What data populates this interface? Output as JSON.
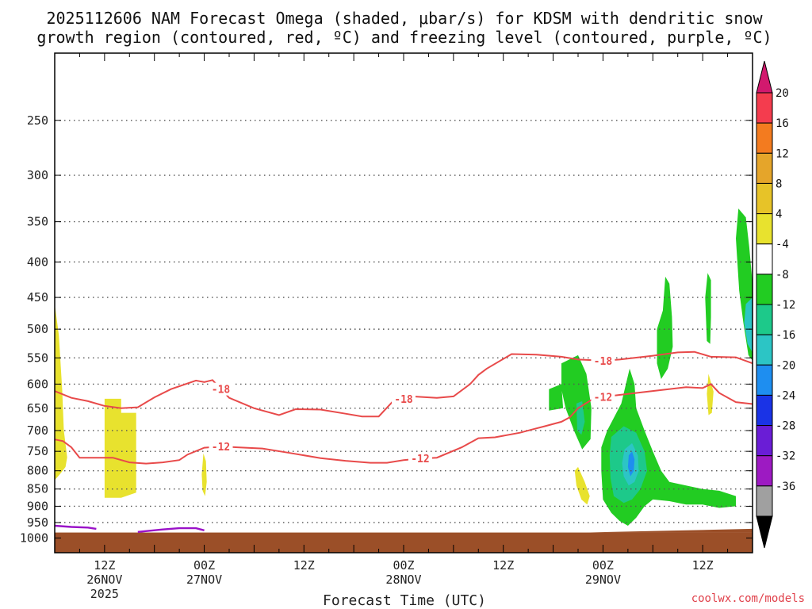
{
  "chart_data": {
    "type": "time-height",
    "title_lines": [
      "2025112606 NAM Forecast Omega (shaded, μbar/s) for KDSM with dendritic snow",
      "growth region (contoured, red, ºC) and freezing level (contoured, purple, ºC)"
    ],
    "xlabel": "Forecast Time (UTC)",
    "credit": "coolwx.com/models",
    "ylabel": "",
    "y_scale": "log-pressure",
    "ylim_hPa": [
      1050,
      200
    ],
    "grid": true,
    "y_ticks": [
      250,
      300,
      350,
      400,
      450,
      500,
      550,
      600,
      650,
      700,
      750,
      800,
      850,
      900,
      950,
      1000
    ],
    "x_range_hours": [
      0,
      84
    ],
    "x_ticks": [
      {
        "hour": 6,
        "lines": [
          "12Z",
          "26NOV",
          "2025"
        ]
      },
      {
        "hour": 18,
        "lines": [
          "00Z",
          "27NOV"
        ]
      },
      {
        "hour": 30,
        "lines": [
          "12Z"
        ]
      },
      {
        "hour": 42,
        "lines": [
          "00Z",
          "28NOV"
        ]
      },
      {
        "hour": 54,
        "lines": [
          "12Z"
        ]
      },
      {
        "hour": 66,
        "lines": [
          "00Z",
          "29NOV"
        ]
      },
      {
        "hour": 78,
        "lines": [
          "12Z"
        ]
      }
    ],
    "colorbar": {
      "labels": [
        "20",
        "16",
        "12",
        "8",
        "4",
        "-4",
        "-8",
        "-12",
        "-16",
        "-20",
        "-24",
        "-28",
        "-32",
        "-36"
      ],
      "colors": [
        "#f43c4e",
        "#f37b1f",
        "#e5a52a",
        "#e7c328",
        "#e8e22e",
        "#ffffff",
        "#22cc22",
        "#1dc98a",
        "#2cc5c5",
        "#1e8ef0",
        "#1a33e6",
        "#6a1dd6",
        "#9d1ac2",
        "#a0a0a0"
      ],
      "top_arrow_color": "#d2196e",
      "bottom_arrow_color": "#000000"
    },
    "contours": [
      {
        "label": "-18",
        "color": "#e84a4a",
        "points": [
          [
            0,
            614
          ],
          [
            2,
            628
          ],
          [
            4,
            635
          ],
          [
            6,
            645
          ],
          [
            8,
            650
          ],
          [
            10,
            648
          ],
          [
            12,
            627
          ],
          [
            14,
            610
          ],
          [
            17,
            593
          ],
          [
            18,
            596
          ],
          [
            19,
            592
          ],
          [
            21,
            628
          ],
          [
            24,
            650
          ],
          [
            27,
            665
          ],
          [
            29,
            652
          ],
          [
            32,
            653
          ],
          [
            35,
            662
          ],
          [
            37,
            668
          ],
          [
            39,
            668
          ],
          [
            41,
            630
          ],
          [
            42,
            630
          ],
          [
            43,
            625
          ],
          [
            46,
            628
          ],
          [
            48,
            625
          ],
          [
            50,
            600
          ],
          [
            51,
            582
          ],
          [
            52,
            570
          ],
          [
            55,
            543
          ],
          [
            58,
            544
          ],
          [
            61,
            548
          ],
          [
            63,
            553
          ],
          [
            66,
            555
          ],
          [
            68,
            553
          ],
          [
            72,
            546
          ],
          [
            75,
            540
          ],
          [
            77,
            539
          ],
          [
            79,
            548
          ],
          [
            82,
            549
          ],
          [
            84,
            560
          ]
        ],
        "label_at_hours": [
          20,
          42,
          66
        ]
      },
      {
        "label": "-12",
        "color": "#e84a4a",
        "points": [
          [
            0,
            721
          ],
          [
            1,
            725
          ],
          [
            2,
            740
          ],
          [
            3,
            766
          ],
          [
            5,
            766
          ],
          [
            7,
            766
          ],
          [
            9,
            778
          ],
          [
            11,
            781
          ],
          [
            13,
            778
          ],
          [
            15,
            772
          ],
          [
            16,
            758
          ],
          [
            18,
            741
          ],
          [
            20,
            738
          ],
          [
            22,
            740
          ],
          [
            25,
            743
          ],
          [
            28,
            753
          ],
          [
            32,
            767
          ],
          [
            35,
            774
          ],
          [
            38,
            779
          ],
          [
            40,
            779
          ],
          [
            42,
            772
          ],
          [
            44,
            768
          ],
          [
            46,
            766
          ],
          [
            49,
            740
          ],
          [
            51,
            718
          ],
          [
            53,
            716
          ],
          [
            56,
            705
          ],
          [
            58,
            695
          ],
          [
            59,
            690
          ],
          [
            61,
            680
          ],
          [
            62,
            670
          ],
          [
            63,
            650
          ],
          [
            65,
            628
          ],
          [
            67,
            624
          ],
          [
            69,
            620
          ],
          [
            73,
            612
          ],
          [
            76,
            606
          ],
          [
            78,
            608
          ],
          [
            79,
            600
          ],
          [
            80,
            618
          ],
          [
            82,
            637
          ],
          [
            84,
            641
          ]
        ],
        "label_at_hours": [
          20,
          44,
          66
        ]
      }
    ],
    "freezing_level": [
      {
        "points": [
          [
            0,
            960
          ],
          [
            2,
            964
          ],
          [
            4,
            966
          ],
          [
            5,
            970
          ]
        ]
      },
      {
        "points": [
          [
            10,
            980
          ],
          [
            13,
            972
          ],
          [
            15,
            968
          ],
          [
            17,
            968
          ],
          [
            18,
            975
          ]
        ]
      }
    ],
    "omega_regions": [
      {
        "color": "#e8e22e",
        "value_range": [
          4,
          8
        ],
        "polygon": [
          [
            0,
            460
          ],
          [
            0.5,
            510
          ],
          [
            0.9,
            610
          ],
          [
            1.1,
            700
          ],
          [
            1.5,
            765
          ],
          [
            1.3,
            790
          ],
          [
            0.6,
            810
          ],
          [
            0,
            825
          ]
        ]
      },
      {
        "color": "#e8e22e",
        "value_range": [
          4,
          8
        ],
        "polygon": [
          [
            6,
            630
          ],
          [
            8,
            630
          ],
          [
            8,
            660
          ],
          [
            9.8,
            660
          ],
          [
            9.8,
            860
          ],
          [
            8,
            875
          ],
          [
            6,
            875
          ]
        ]
      },
      {
        "color": "#e8e22e",
        "value_range": [
          4,
          8
        ],
        "polygon": [
          [
            17.9,
            755
          ],
          [
            18.2,
            775
          ],
          [
            18.3,
            830
          ],
          [
            18.1,
            870
          ],
          [
            17.8,
            855
          ],
          [
            17.7,
            810
          ]
        ]
      },
      {
        "color": "#e8e22e",
        "value_range": [
          4,
          8
        ],
        "polygon": [
          [
            63,
            790
          ],
          [
            63.8,
            830
          ],
          [
            64.4,
            870
          ],
          [
            64.1,
            895
          ],
          [
            63.4,
            880
          ],
          [
            62.8,
            840
          ],
          [
            62.6,
            800
          ]
        ]
      },
      {
        "color": "#e8e22e",
        "value_range": [
          4,
          8
        ],
        "polygon": [
          [
            78.7,
            580
          ],
          [
            79.3,
            615
          ],
          [
            79.1,
            660
          ],
          [
            78.7,
            665
          ],
          [
            78.5,
            620
          ]
        ]
      },
      {
        "color": "#22cc22",
        "value_range": [
          -8,
          -4
        ],
        "polygon": [
          [
            61,
            560
          ],
          [
            63,
            545
          ],
          [
            64,
            580
          ],
          [
            64.6,
            650
          ],
          [
            64.5,
            720
          ],
          [
            63.5,
            745
          ],
          [
            62.5,
            700
          ],
          [
            61.5,
            650
          ],
          [
            61,
            610
          ]
        ]
      },
      {
        "color": "#22cc22",
        "value_range": [
          -8,
          -4
        ],
        "polygon": [
          [
            59.5,
            610
          ],
          [
            61,
            600
          ],
          [
            61.2,
            650
          ],
          [
            59.5,
            655
          ]
        ]
      },
      {
        "color": "#22cc22",
        "value_range": [
          -8,
          -4
        ],
        "polygon": [
          [
            66.5,
            700
          ],
          [
            68.2,
            640
          ],
          [
            69.2,
            570
          ],
          [
            69.8,
            600
          ],
          [
            70,
            650
          ],
          [
            71,
            700
          ],
          [
            72,
            750
          ],
          [
            73,
            800
          ],
          [
            74,
            830
          ],
          [
            76,
            840
          ],
          [
            77,
            845
          ],
          [
            78,
            850
          ],
          [
            80,
            855
          ],
          [
            82,
            870
          ],
          [
            82,
            900
          ],
          [
            80,
            905
          ],
          [
            78,
            895
          ],
          [
            76,
            895
          ],
          [
            74,
            885
          ],
          [
            72,
            880
          ],
          [
            71,
            900
          ],
          [
            70,
            935
          ],
          [
            69,
            960
          ],
          [
            68,
            945
          ],
          [
            67,
            920
          ],
          [
            66,
            880
          ],
          [
            65.8,
            800
          ],
          [
            65.8,
            740
          ]
        ]
      },
      {
        "color": "#22cc22",
        "value_range": [
          -8,
          -4
        ],
        "polygon": [
          [
            72.5,
            500
          ],
          [
            73.2,
            470
          ],
          [
            73.5,
            420
          ],
          [
            74,
            430
          ],
          [
            74.3,
            480
          ],
          [
            74.4,
            530
          ],
          [
            73.8,
            570
          ],
          [
            73,
            590
          ],
          [
            72.5,
            560
          ]
        ]
      },
      {
        "color": "#22cc22",
        "value_range": [
          -8,
          -4
        ],
        "polygon": [
          [
            78.3,
            450
          ],
          [
            78.6,
            415
          ],
          [
            79,
            425
          ],
          [
            79,
            480
          ],
          [
            78.9,
            525
          ],
          [
            78.5,
            520
          ]
        ]
      },
      {
        "color": "#22cc22",
        "value_range": [
          -8,
          -4
        ],
        "polygon": [
          [
            82,
            370
          ],
          [
            82.3,
            335
          ],
          [
            83.2,
            345
          ],
          [
            83.6,
            380
          ],
          [
            84,
            430
          ],
          [
            84,
            555
          ],
          [
            83.5,
            545
          ],
          [
            82.9,
            490
          ],
          [
            82.4,
            440
          ]
        ]
      },
      {
        "color": "#1dc98a",
        "value_range": [
          -12,
          -8
        ],
        "polygon": [
          [
            67,
            715
          ],
          [
            68.5,
            690
          ],
          [
            70,
            705
          ],
          [
            71,
            750
          ],
          [
            71.3,
            800
          ],
          [
            70.5,
            850
          ],
          [
            69.5,
            880
          ],
          [
            68.5,
            890
          ],
          [
            67.3,
            870
          ],
          [
            66.9,
            820
          ],
          [
            66.8,
            760
          ]
        ]
      },
      {
        "color": "#1dc98a",
        "value_range": [
          -12,
          -8
        ],
        "polygon": [
          [
            62.8,
            640
          ],
          [
            63.5,
            635
          ],
          [
            63.8,
            680
          ],
          [
            63.4,
            710
          ],
          [
            62.9,
            700
          ]
        ]
      },
      {
        "color": "#2cc5c5",
        "value_range": [
          -16,
          -12
        ],
        "polygon": [
          [
            68.6,
            745
          ],
          [
            69.5,
            730
          ],
          [
            70.2,
            760
          ],
          [
            70.3,
            800
          ],
          [
            69.8,
            830
          ],
          [
            69.1,
            840
          ],
          [
            68.5,
            815
          ],
          [
            68.3,
            780
          ]
        ]
      },
      {
        "color": "#2cc5c5",
        "value_range": [
          -16,
          -12
        ],
        "polygon": [
          [
            83.2,
            460
          ],
          [
            84,
            450
          ],
          [
            84,
            540
          ],
          [
            83.4,
            525
          ],
          [
            83,
            490
          ]
        ]
      },
      {
        "color": "#1e8ef0",
        "value_range": [
          -20,
          -16
        ],
        "polygon": [
          [
            69.1,
            760
          ],
          [
            69.5,
            750
          ],
          [
            69.8,
            770
          ],
          [
            69.7,
            800
          ],
          [
            69.3,
            815
          ],
          [
            69,
            790
          ]
        ]
      }
    ],
    "terrain_color": "#9b4f28"
  }
}
